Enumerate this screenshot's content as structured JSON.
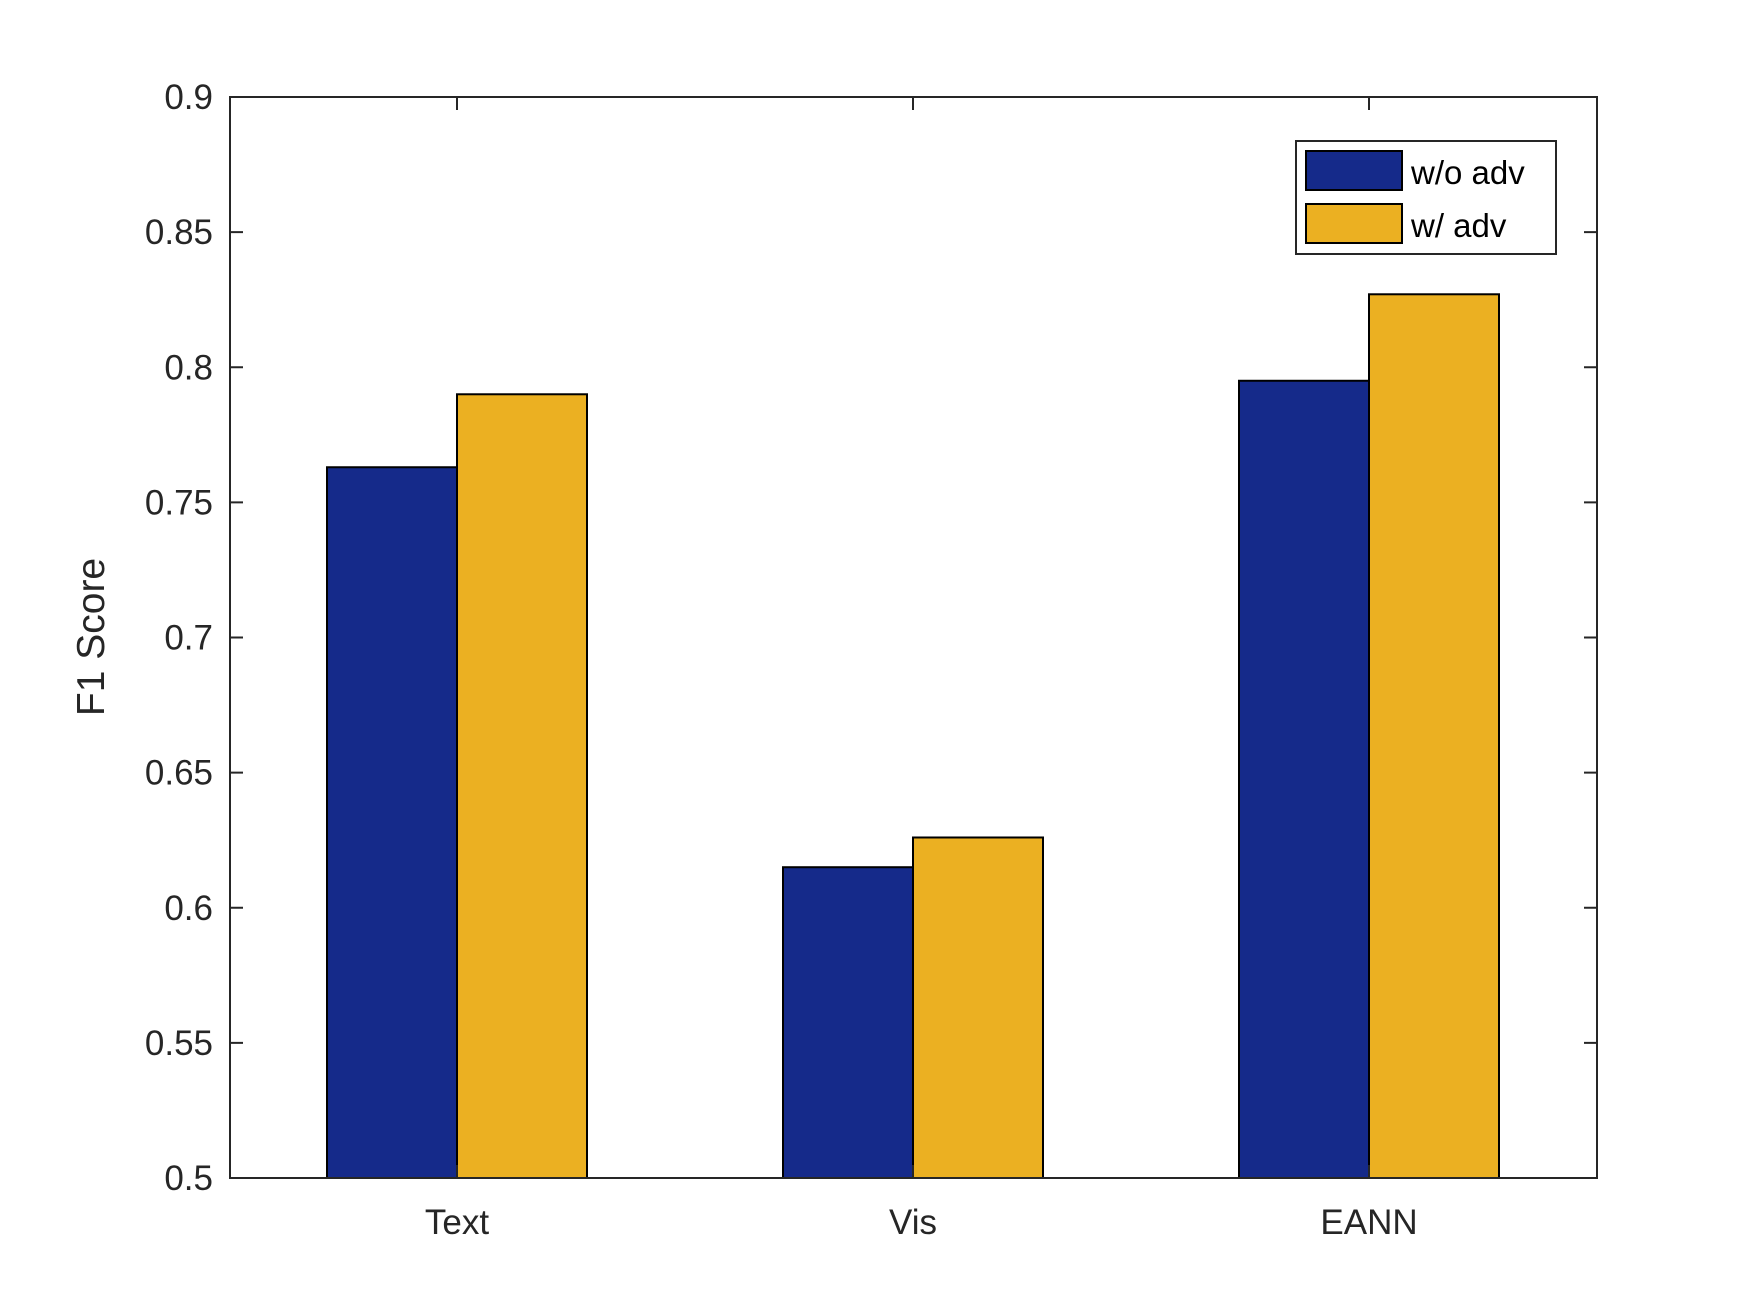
{
  "chart_data": {
    "type": "bar",
    "title": "",
    "xlabel": "",
    "ylabel": "F1 Score",
    "categories": [
      "Text",
      "Vis",
      "EANN"
    ],
    "series": [
      {
        "name": "w/o adv",
        "color": "#152a8a",
        "values": [
          0.763,
          0.615,
          0.795
        ]
      },
      {
        "name": "w/ adv",
        "color": "#ebb022",
        "values": [
          0.79,
          0.626,
          0.827
        ]
      }
    ],
    "ylim": [
      0.5,
      0.9
    ],
    "yticks": [
      "0.5",
      "0.55",
      "0.6",
      "0.65",
      "0.7",
      "0.75",
      "0.8",
      "0.85",
      "0.9"
    ],
    "grid": false,
    "legend_position": "top-right"
  }
}
